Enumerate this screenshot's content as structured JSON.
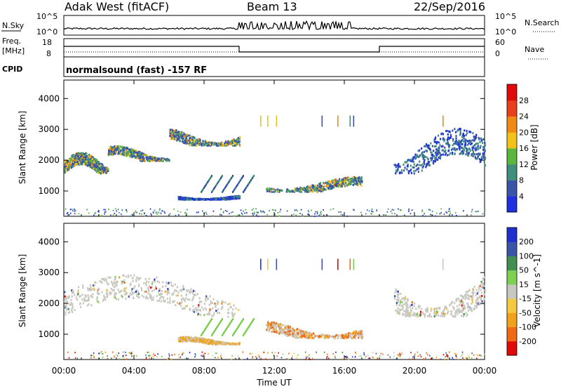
{
  "header": {
    "site": "Adak West (fitACF)",
    "beam": "Beam 13",
    "date": "22/Sep/2016"
  },
  "strips": {
    "nsky_label": "N.Sky",
    "nsearch_label": "N.Search",
    "freq_label_1": "Freq.",
    "freq_label_2": "[MHz]",
    "nave_label": "Nave",
    "cpid_label": "CPID",
    "cpid_text": "normalsound (fast) -157 RF",
    "noise_ticks": [
      "10^5",
      "10^0"
    ],
    "freq_ticks": [
      "18",
      "8"
    ],
    "nave_ticks": [
      "60",
      "0"
    ]
  },
  "chart_data": [
    {
      "type": "heatmap",
      "name": "power-panel",
      "xlabel": "",
      "ylabel": "Slant Range [km]",
      "x_ticks": [
        "00:00",
        "04:00",
        "08:00",
        "12:00",
        "16:00",
        "20:00",
        "00:00"
      ],
      "y_ticks": [
        1000,
        2000,
        3000,
        4000
      ],
      "xlim_hours": [
        0,
        24
      ],
      "ylim_km": [
        180,
        4600
      ],
      "colorbar": {
        "label": "Power [dB]",
        "ticks": [
          4,
          8,
          12,
          16,
          20,
          24,
          28
        ],
        "colors": [
          "#1f30e0",
          "#3a55a8",
          "#3f8f7a",
          "#5ab63c",
          "#f0c21a",
          "#ef8a14",
          "#e8401a",
          "#e00a0a"
        ]
      },
      "echo_regions": [
        {
          "t_start": 0.0,
          "t_end": 2.5,
          "r_low": 1600,
          "r_high": 2300,
          "level": "strong"
        },
        {
          "t_start": 2.5,
          "t_end": 6.0,
          "r_low": 2000,
          "r_high": 2500,
          "level": "strong"
        },
        {
          "t_start": 6.0,
          "t_end": 10.0,
          "r_low": 2500,
          "r_high": 3100,
          "level": "strong"
        },
        {
          "t_start": 6.5,
          "t_end": 10.0,
          "r_low": 750,
          "r_high": 900,
          "level": "moderate"
        },
        {
          "t_start": 11.5,
          "t_end": 17.0,
          "r_low": 1000,
          "r_high": 1500,
          "level": "strong"
        },
        {
          "t_start": 18.8,
          "t_end": 24.0,
          "r_low": 1600,
          "r_high": 3100,
          "level": "moderate"
        }
      ]
    },
    {
      "type": "heatmap",
      "name": "velocity-panel",
      "xlabel": "Time UT",
      "ylabel": "Slant Range [km]",
      "x_ticks": [
        "00:00",
        "04:00",
        "08:00",
        "12:00",
        "16:00",
        "20:00",
        "00:00"
      ],
      "y_ticks": [
        1000,
        2000,
        3000,
        4000
      ],
      "xlim_hours": [
        0,
        24
      ],
      "ylim_km": [
        180,
        4600
      ],
      "colorbar": {
        "label": "Velocity [m s^-1]",
        "ticks": [
          -200,
          -100,
          -50,
          -15,
          15,
          50,
          100,
          200
        ],
        "colors": [
          "#e00a0a",
          "#ef6a14",
          "#f0a21a",
          "#f5c840",
          "#c8c8c0",
          "#7dd050",
          "#3f8f50",
          "#3a55a8",
          "#2030d0"
        ]
      },
      "echo_regions": [
        {
          "t_start": 0.0,
          "t_end": 10.0,
          "r_low": 1600,
          "r_high": 3000,
          "velocity": "near-zero"
        },
        {
          "t_start": 6.5,
          "t_end": 10.0,
          "r_low": 700,
          "r_high": 950,
          "velocity": "-15 to -50"
        },
        {
          "t_start": 11.5,
          "t_end": 17.0,
          "r_low": 900,
          "r_high": 1500,
          "velocity": "-50 to -100"
        },
        {
          "t_start": 18.8,
          "t_end": 24.0,
          "r_low": 1600,
          "r_high": 3100,
          "velocity": "near-zero"
        }
      ]
    }
  ]
}
